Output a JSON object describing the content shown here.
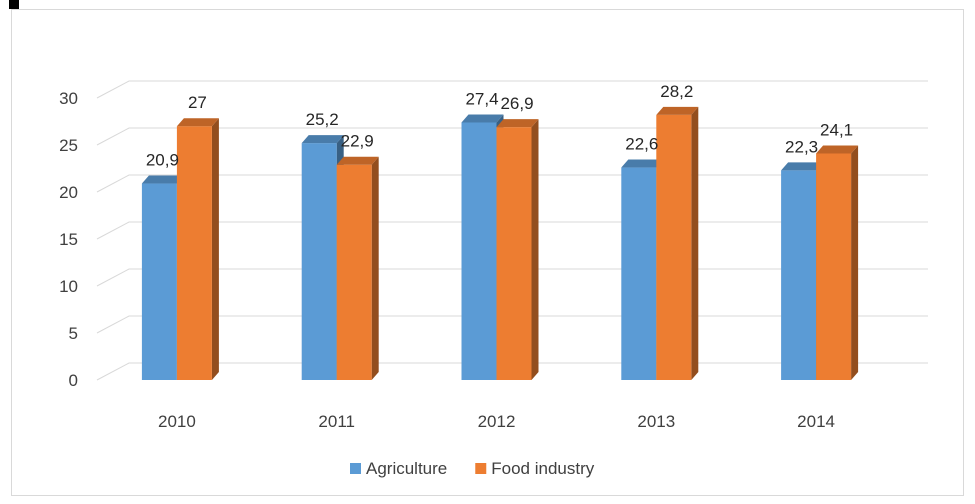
{
  "chart_data": {
    "type": "bar",
    "title": "",
    "xlabel": "",
    "ylabel": "",
    "categories": [
      "2010",
      "2011",
      "2012",
      "2013",
      "2014"
    ],
    "series": [
      {
        "name": "Agriculture",
        "values": [
          20.9,
          25.2,
          27.4,
          22.6,
          22.3
        ],
        "labels": [
          "20,9",
          "25,2",
          "27,4",
          "22,6",
          "22,3"
        ],
        "color": "#5b9bd5"
      },
      {
        "name": "Food industry",
        "values": [
          27,
          22.9,
          26.9,
          28.2,
          24.1
        ],
        "labels": [
          "27",
          "22,9",
          "26,9",
          "28,2",
          "24,1"
        ],
        "color": "#ed7d31"
      }
    ],
    "yticks": [
      "0",
      "5",
      "10",
      "15",
      "20",
      "25",
      "30"
    ],
    "ylim": [
      0,
      30
    ],
    "grid": true,
    "legend": "bottom",
    "style": "3d-clustered-column"
  }
}
